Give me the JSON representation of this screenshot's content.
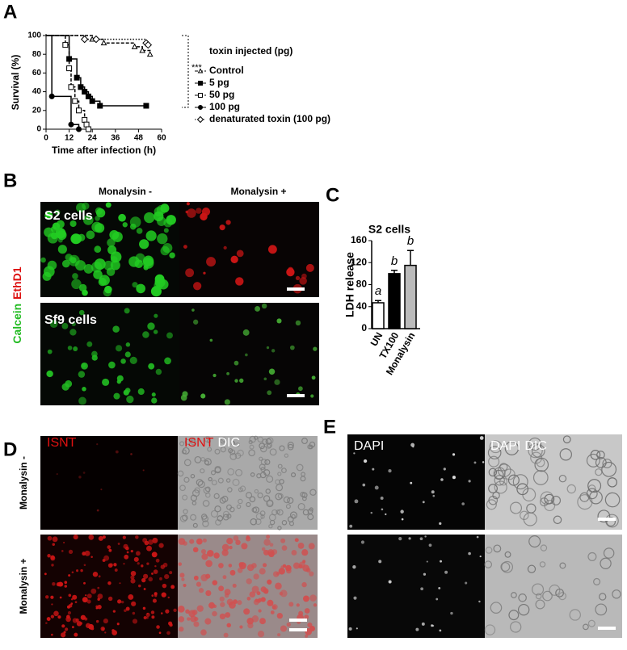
{
  "panel_labels": [
    "A",
    "B",
    "C",
    "D",
    "E"
  ],
  "chart_data": [
    {
      "type": "step",
      "xlabel": "Time after infection (h)",
      "ylabel": "Survival (%)",
      "xlim": [
        0,
        60
      ],
      "xticks": [
        0,
        12,
        24,
        36,
        48,
        60
      ],
      "ylim": [
        0,
        100
      ],
      "yticks": [
        0,
        20,
        40,
        60,
        80,
        100
      ],
      "legend_title": "toxin injected (pg)",
      "significance": "***",
      "series": [
        {
          "name": "Control",
          "color": "#000000",
          "marker": "triangle-open",
          "dash": "dashed",
          "x": [
            0,
            24,
            30,
            46,
            50,
            54
          ],
          "values": [
            100,
            96,
            92,
            88,
            84,
            80
          ]
        },
        {
          "name": "5 pg",
          "color": "#000000",
          "marker": "square-filled",
          "dash": "solid",
          "x": [
            0,
            12,
            16,
            18,
            20,
            22,
            24,
            28,
            52
          ],
          "values": [
            100,
            75,
            55,
            45,
            40,
            35,
            30,
            25,
            25
          ]
        },
        {
          "name": "50 pg",
          "color": "#000000",
          "marker": "square-open",
          "dash": "dashed",
          "x": [
            0,
            10,
            12,
            13,
            15,
            17,
            20,
            21,
            22
          ],
          "values": [
            100,
            90,
            65,
            45,
            30,
            20,
            10,
            5,
            0
          ]
        },
        {
          "name": "100 pg",
          "color": "#000000",
          "marker": "circle-filled",
          "dash": "solid",
          "x": [
            0,
            3,
            13,
            17
          ],
          "values": [
            100,
            35,
            5,
            0
          ]
        },
        {
          "name": "denaturated toxin (100 pg)",
          "color": "#000000",
          "marker": "diamond-open",
          "dash": "dotted",
          "x": [
            0,
            20,
            26,
            52,
            53
          ],
          "values": [
            100,
            96,
            96,
            92,
            90
          ]
        }
      ]
    },
    {
      "type": "bar",
      "title": "S2 cells",
      "ylabel": "LDH release",
      "categories": [
        "UN",
        "TX100",
        "Monalysin"
      ],
      "values": [
        47,
        100,
        115
      ],
      "errors": [
        4,
        6,
        27
      ],
      "colors": [
        "#ffffff",
        "#000000",
        "#bbbbbb"
      ],
      "annotations": [
        "a",
        "b",
        "b"
      ],
      "ylim": [
        0,
        160
      ],
      "yticks": [
        0,
        40,
        80,
        120,
        160
      ]
    }
  ],
  "panel_b": {
    "column_headers": [
      "Monalysin -",
      "Monalysin +"
    ],
    "row_labels": [
      "S2 cells",
      "Sf9 cells"
    ],
    "stain_labels": [
      "Calcein",
      "EthD1"
    ]
  },
  "panel_d": {
    "channels": [
      "ISNT",
      "DIC"
    ],
    "row_labels": [
      "Monalysin -",
      "Monalysin +"
    ]
  },
  "panel_e": {
    "channels": [
      "DAPI",
      "DIC"
    ]
  }
}
